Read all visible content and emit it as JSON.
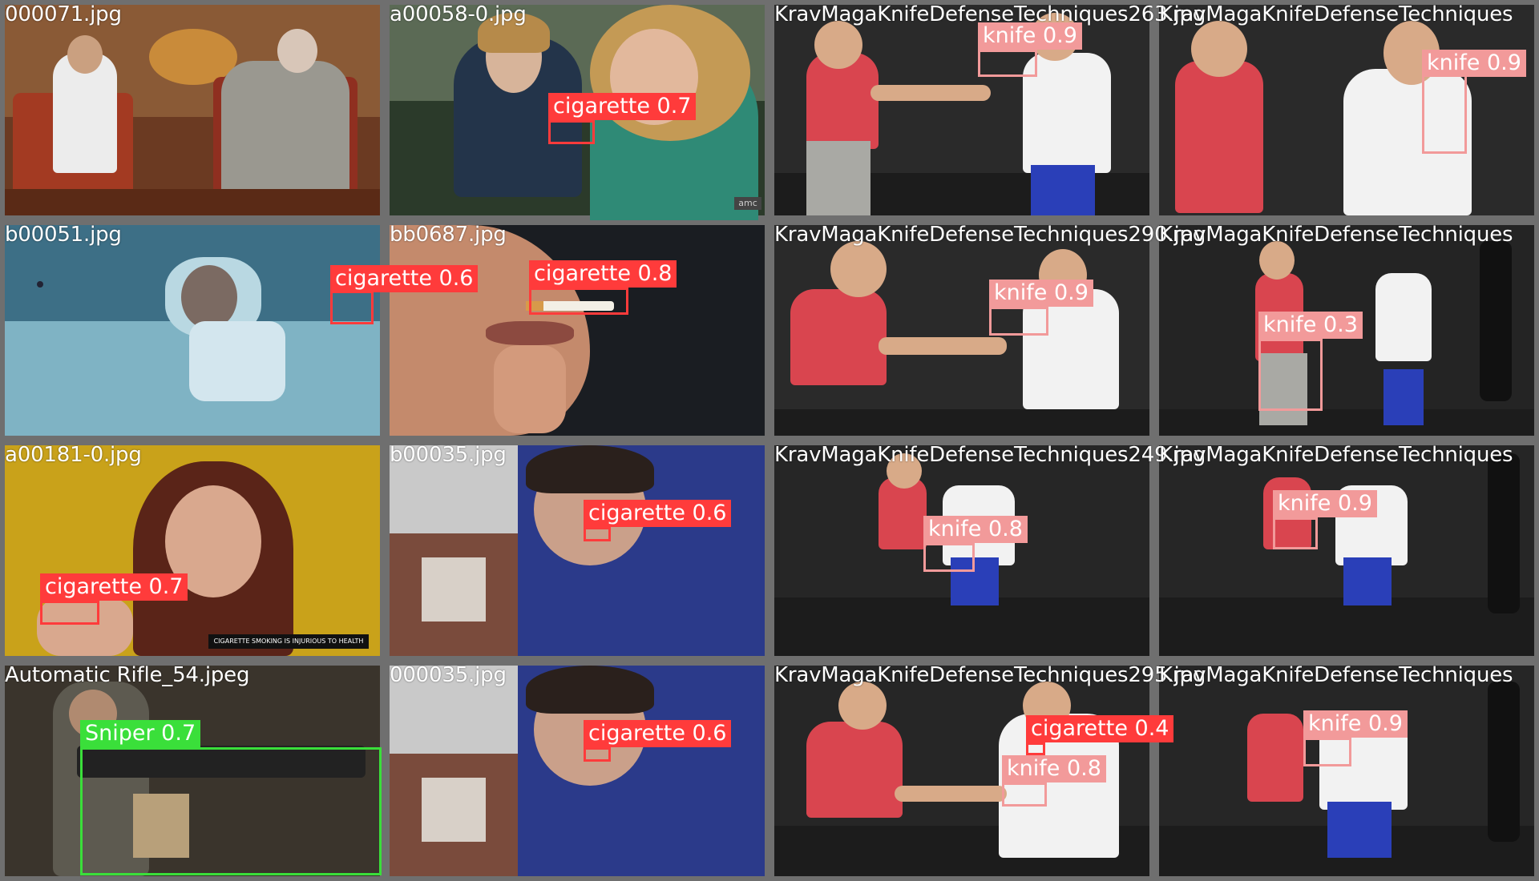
{
  "colors": {
    "cigarette": "#ff3b3b",
    "knife": "#f29a9a",
    "sniper": "#3adf3a",
    "tile_border": "#6f6f6f"
  },
  "tiles": [
    {
      "filename": "000071.jpg",
      "scene": "living-room",
      "detections": []
    },
    {
      "filename": "a00058-0.jpg",
      "scene": "car",
      "detections": [
        {
          "label": "cigarette 0.7",
          "cls": "red"
        }
      ]
    },
    {
      "filename": "KravMagaKnifeDefenseTechniques263.jpg",
      "scene": "gym",
      "detections": [
        {
          "label": "knife 0.9",
          "cls": "pink"
        }
      ]
    },
    {
      "filename": "KravMagaKnifeDefenseTechniques",
      "scene": "gym",
      "detections": [
        {
          "label": "knife 0.9",
          "cls": "pink"
        }
      ]
    },
    {
      "filename": "b00051.jpg",
      "scene": "bedroom",
      "detections": [
        {
          "label": "cigarette 0.6",
          "cls": "red"
        }
      ]
    },
    {
      "filename": "bb0687.jpg",
      "scene": "closeup",
      "detections": [
        {
          "label": "cigarette 0.8",
          "cls": "red"
        }
      ]
    },
    {
      "filename": "KravMagaKnifeDefenseTechniques290.jpg",
      "scene": "gym",
      "detections": [
        {
          "label": "knife 0.9",
          "cls": "pink"
        }
      ]
    },
    {
      "filename": "KravMagaKnifeDefenseTechniques",
      "scene": "gym",
      "detections": [
        {
          "label": "knife 0.3",
          "cls": "pink"
        }
      ]
    },
    {
      "filename": "a00181-0.jpg",
      "scene": "yellow",
      "detections": [
        {
          "label": "cigarette 0.7",
          "cls": "red"
        }
      ]
    },
    {
      "filename": "b00035.jpg",
      "scene": "office",
      "detections": [
        {
          "label": "cigarette 0.6",
          "cls": "red"
        }
      ]
    },
    {
      "filename": "KravMagaKnifeDefenseTechniques249.jpg",
      "scene": "gym",
      "detections": [
        {
          "label": "knife 0.8",
          "cls": "pink"
        }
      ]
    },
    {
      "filename": "KravMagaKnifeDefenseTechniques",
      "scene": "gym",
      "detections": [
        {
          "label": "knife 0.9",
          "cls": "pink"
        }
      ]
    },
    {
      "filename": "Automatic Rifle_54.jpeg",
      "scene": "soldier",
      "detections": [
        {
          "label": "Sniper 0.7",
          "cls": "green"
        }
      ]
    },
    {
      "filename": "000035.jpg",
      "scene": "office",
      "detections": [
        {
          "label": "cigarette 0.6",
          "cls": "red"
        }
      ]
    },
    {
      "filename": "KravMagaKnifeDefenseTechniques295.jpg",
      "scene": "gym",
      "detections": [
        {
          "label": "cigarette 0.4",
          "cls": "red"
        },
        {
          "label": "knife 0.8",
          "cls": "pink"
        }
      ]
    },
    {
      "filename": "KravMagaKnifeDefenseTechniques",
      "scene": "gym",
      "detections": [
        {
          "label": "knife 0.9",
          "cls": "pink"
        }
      ]
    }
  ],
  "yellow_banner": "CIGARETTE SMOKING IS INJURIOUS TO HEALTH",
  "car_watermark": "amc"
}
